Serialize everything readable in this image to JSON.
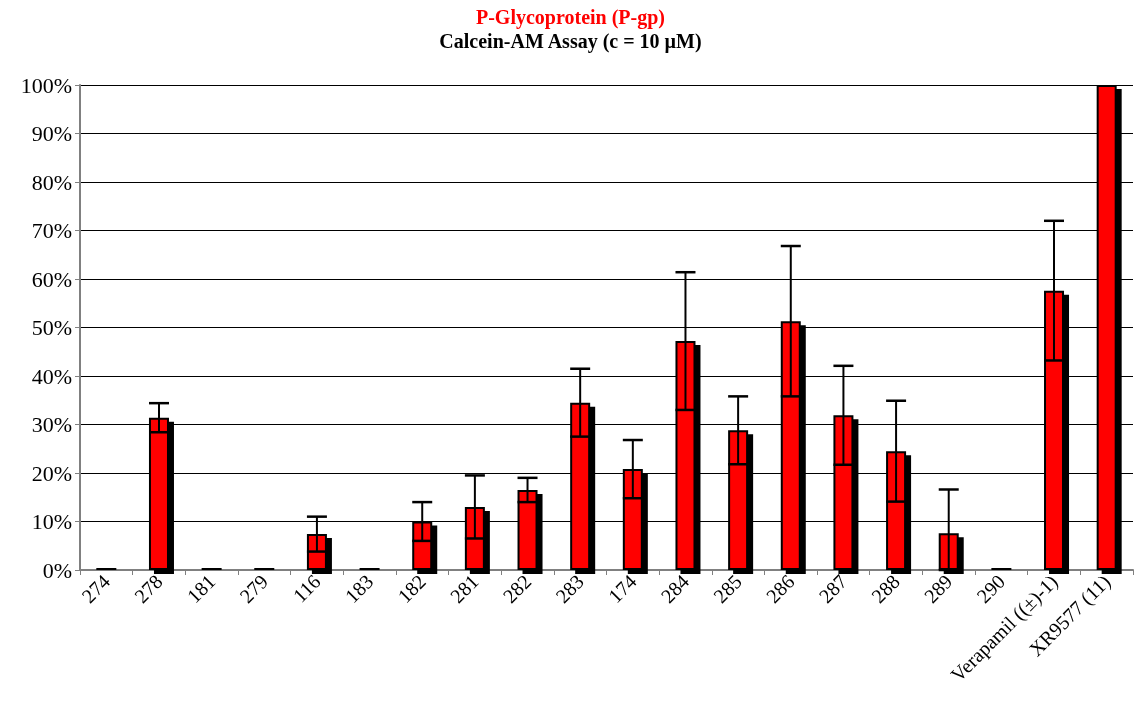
{
  "chart_data": {
    "type": "bar",
    "title": "P-Glycoprotein (P-gp)",
    "subtitle": "Calcein-AM Assay (c = 10 µM)",
    "categories": [
      "274",
      "278",
      "181",
      "279",
      "116",
      "183",
      "182",
      "281",
      "282",
      "283",
      "174",
      "284",
      "285",
      "286",
      "287",
      "288",
      "289",
      "290",
      "Verapamil ((±)-1)",
      "XR9577 (11)"
    ],
    "values": [
      0.5,
      31.4,
      0.5,
      0.5,
      7.4,
      0.5,
      10,
      13,
      16.5,
      34.5,
      20.8,
      47.2,
      28.8,
      51.3,
      31.9,
      24.5,
      7.6,
      0.5,
      57.6,
      100
    ],
    "errors": [
      null,
      3,
      null,
      null,
      3.6,
      null,
      4,
      6.5,
      2.5,
      7,
      6,
      14.2,
      7,
      15.5,
      10.2,
      10.4,
      [
        0,
        16.6
      ],
      null,
      14.4,
      null
    ],
    "color": "#ff0000",
    "ylim": [
      0,
      100
    ],
    "yticks": [
      {
        "value": 0,
        "label": "0%"
      },
      {
        "value": 10,
        "label": "10%"
      },
      {
        "value": 20,
        "label": "20%"
      },
      {
        "value": 30,
        "label": "30%"
      },
      {
        "value": 40,
        "label": "40%"
      },
      {
        "value": 50,
        "label": "50%"
      },
      {
        "value": 60,
        "label": "60%"
      },
      {
        "value": 70,
        "label": "70%"
      },
      {
        "value": 80,
        "label": "80%"
      },
      {
        "value": 90,
        "label": "90%"
      },
      {
        "value": 100,
        "label": "100%"
      }
    ],
    "grid": "y"
  }
}
